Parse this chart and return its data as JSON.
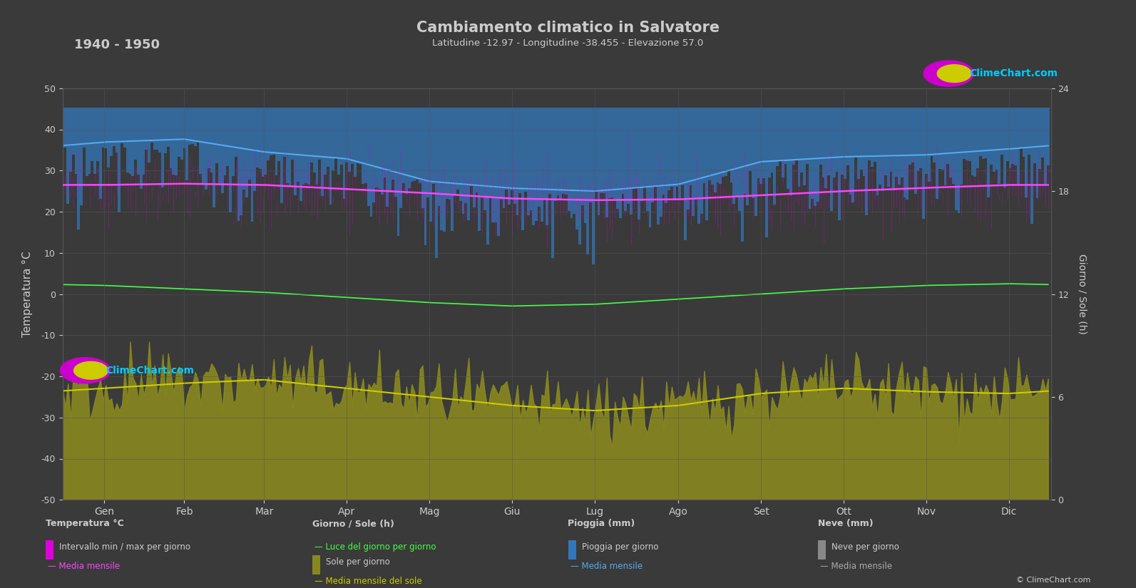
{
  "title": "Cambiamento climatico in Salvatore",
  "subtitle": "Latitudine -12.97 - Longitudine -38.455 - Elevazione 57.0",
  "year_range": "1940 - 1950",
  "background_color": "#3a3a3a",
  "plot_bg_color": "#3a3a3a",
  "text_color": "#cccccc",
  "months": [
    "Gen",
    "Feb",
    "Mar",
    "Apr",
    "Mag",
    "Giu",
    "Lug",
    "Ago",
    "Set",
    "Ott",
    "Nov",
    "Dic"
  ],
  "temp_ylim": [
    -50,
    50
  ],
  "rain_ylim": [
    40,
    -2
  ],
  "sun_ylim": [
    0,
    24
  ],
  "temp_mean": [
    26.5,
    26.8,
    26.5,
    25.5,
    24.5,
    23.2,
    22.8,
    23.0,
    24.0,
    25.0,
    25.8,
    26.5
  ],
  "temp_max_mean": [
    29.5,
    29.8,
    29.5,
    28.5,
    27.5,
    26.2,
    25.8,
    26.0,
    27.0,
    28.0,
    28.8,
    29.5
  ],
  "temp_min_mean": [
    23.5,
    23.8,
    23.5,
    22.5,
    21.5,
    20.2,
    19.8,
    20.0,
    21.0,
    22.0,
    22.8,
    23.5
  ],
  "sun_mean": [
    6.5,
    6.8,
    7.0,
    6.5,
    6.0,
    5.5,
    5.2,
    5.5,
    6.2,
    6.5,
    6.3,
    6.2
  ],
  "daylight_mean": [
    12.5,
    12.3,
    12.1,
    11.8,
    11.5,
    11.3,
    11.4,
    11.7,
    12.0,
    12.3,
    12.5,
    12.6
  ],
  "rain_mean": [
    3.5,
    3.2,
    4.5,
    5.2,
    7.5,
    8.2,
    8.5,
    7.8,
    5.5,
    5.0,
    4.8,
    4.2
  ],
  "grid_color": "#555555",
  "temp_interval_color": "#dd00dd",
  "temp_line_color": "#ff44ff",
  "sun_fill_color": "#888820",
  "sun_line_color": "#cccc00",
  "daylight_line_color": "#44ff44",
  "rain_color": "#3377bb",
  "rain_mean_color": "#55aaee",
  "snow_color": "#aaaaaa"
}
